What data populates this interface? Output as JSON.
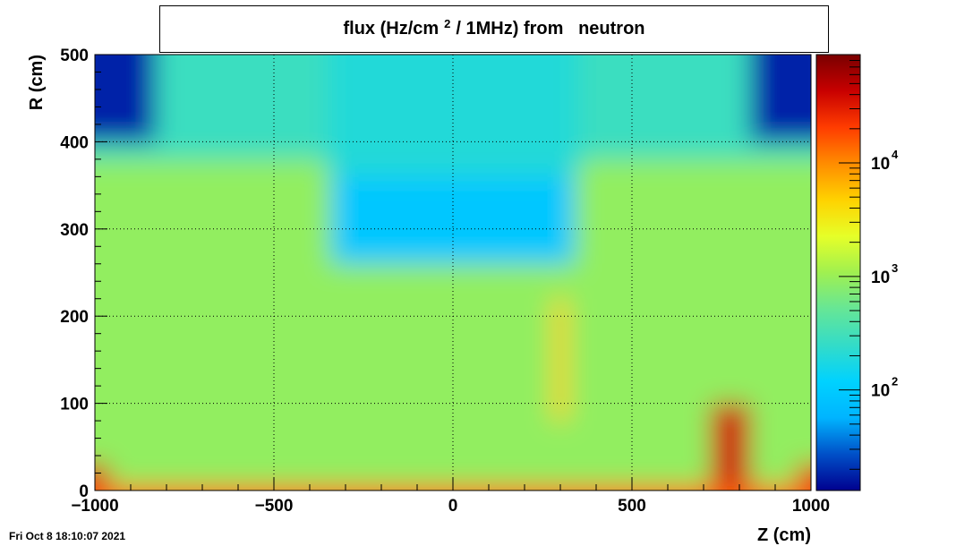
{
  "chart_data": {
    "type": "heatmap",
    "title_parts": [
      "flux (Hz/cm",
      "2",
      "/ 1MHz) from   neutron"
    ],
    "xlabel": "Z (cm)",
    "ylabel": "R (cm)",
    "xlim": [
      -1000,
      1000
    ],
    "ylim": [
      0,
      500
    ],
    "x_ticks": [
      -1000,
      -500,
      0,
      500,
      1000
    ],
    "x_tick_labels": [
      "−1000",
      "−500",
      "0",
      "500",
      "1000"
    ],
    "y_ticks": [
      0,
      100,
      200,
      300,
      400,
      500
    ],
    "y_tick_labels": [
      "0",
      "100",
      "200",
      "300",
      "400",
      "500"
    ],
    "grid": true,
    "color_scale": "log",
    "zlim": [
      13,
      90000
    ],
    "colorbar_ticks": [
      {
        "value": 100,
        "base": "10",
        "exp": "2"
      },
      {
        "value": 1000,
        "base": "10",
        "exp": "3"
      },
      {
        "value": 10000,
        "base": "10",
        "exp": "4"
      }
    ],
    "palette": [
      "#00008f",
      "#0050c8",
      "#00b4ff",
      "#00d2ff",
      "#33dcc8",
      "#66e696",
      "#a0f050",
      "#e6ff28",
      "#ffd200",
      "#ff8c00",
      "#ff3c00",
      "#c80000",
      "#7a0000"
    ],
    "regions": [
      {
        "name": "background-center",
        "z": [
          -1000,
          1000
        ],
        "r": [
          0,
          500
        ],
        "value": 900
      },
      {
        "name": "upper-band",
        "z": [
          -1000,
          1000
        ],
        "r": [
          380,
          500
        ],
        "value": 280
      },
      {
        "name": "corner-left",
        "z": [
          -1000,
          -830
        ],
        "r": [
          400,
          500
        ],
        "value": 18
      },
      {
        "name": "corner-right",
        "z": [
          830,
          1000
        ],
        "r": [
          400,
          500
        ],
        "value": 18
      },
      {
        "name": "central-top",
        "z": [
          -350,
          350
        ],
        "r": [
          360,
          500
        ],
        "value": 200
      },
      {
        "name": "central-dark-block",
        "z": [
          -340,
          340
        ],
        "r": [
          260,
          360
        ],
        "value": 90
      },
      {
        "name": "hot-spot-right",
        "z": [
          720,
          830
        ],
        "r": [
          0,
          100
        ],
        "value": 40000
      },
      {
        "name": "hot-spot-left-base",
        "z": [
          -1000,
          -960
        ],
        "r": [
          0,
          30
        ],
        "value": 35000
      },
      {
        "name": "hot-spot-right-base",
        "z": [
          960,
          1000
        ],
        "r": [
          0,
          30
        ],
        "value": 30000
      },
      {
        "name": "beam-line",
        "z": [
          -1000,
          1000
        ],
        "r": [
          0,
          5
        ],
        "value": 15000
      },
      {
        "name": "hot-stripe",
        "z": [
          280,
          320
        ],
        "r": [
          80,
          220
        ],
        "value": 5000
      }
    ]
  },
  "footer": {
    "date_stamp": "Fri Oct  8 18:10:07 2021"
  }
}
